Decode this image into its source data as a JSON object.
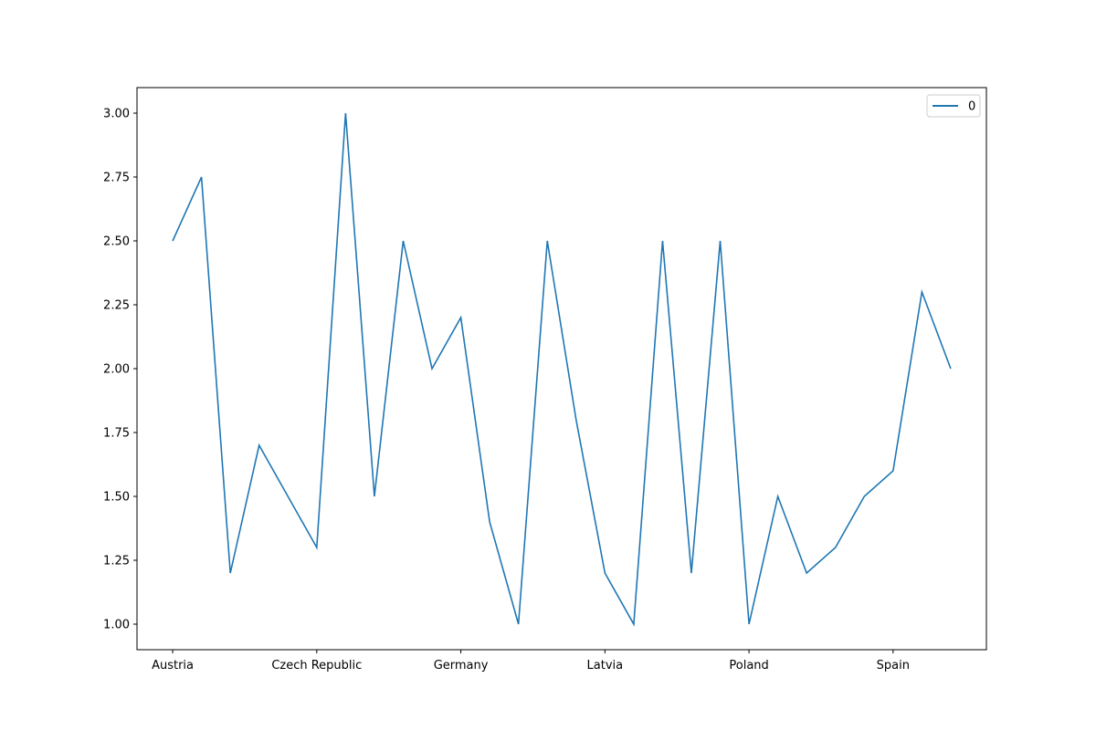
{
  "chart_data": {
    "type": "line",
    "title": "",
    "xlabel": "",
    "ylabel": "",
    "categories": [
      "Austria",
      "",
      "",
      "",
      "",
      "Czech Republic",
      "",
      "",
      "",
      "",
      "Germany",
      "",
      "",
      "",
      "",
      "Latvia",
      "",
      "",
      "",
      "",
      "Poland",
      "",
      "",
      "",
      "",
      "Spain",
      "",
      ""
    ],
    "x_tick_labels": [
      {
        "index": 0,
        "label": "Austria"
      },
      {
        "index": 5,
        "label": "Czech Republic"
      },
      {
        "index": 10,
        "label": "Germany"
      },
      {
        "index": 15,
        "label": "Latvia"
      },
      {
        "index": 20,
        "label": "Poland"
      },
      {
        "index": 25,
        "label": "Spain"
      }
    ],
    "series": [
      {
        "name": "0",
        "color": "#1f77b4",
        "values": [
          2.5,
          2.75,
          1.2,
          1.7,
          1.5,
          1.3,
          3.0,
          1.5,
          2.5,
          2.0,
          2.2,
          1.4,
          1.0,
          2.5,
          1.8,
          1.2,
          1.0,
          2.5,
          1.2,
          2.5,
          1.0,
          1.5,
          1.2,
          1.3,
          1.5,
          1.6,
          2.3,
          2.0
        ]
      }
    ],
    "ylim": [
      0.9,
      3.1
    ],
    "yticks": [
      "1.00",
      "1.25",
      "1.50",
      "1.75",
      "2.00",
      "2.25",
      "2.50",
      "2.75",
      "3.00"
    ],
    "legend": {
      "position": "top-right",
      "entries": [
        "0"
      ]
    },
    "grid": false
  }
}
